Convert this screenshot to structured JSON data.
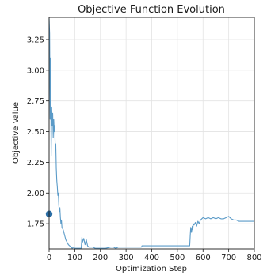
{
  "chart_data": {
    "type": "line",
    "title": "Objective Function Evolution",
    "xlabel": "Optimization Step",
    "ylabel": "Objective Value",
    "xlim": [
      0,
      800
    ],
    "ylim": [
      1.545,
      3.43
    ],
    "x_ticks": [
      0,
      100,
      200,
      300,
      400,
      500,
      600,
      700,
      800
    ],
    "y_ticks": [
      1.75,
      2.0,
      2.25,
      2.5,
      2.75,
      3.0,
      3.25
    ],
    "grid": true,
    "legend": "none",
    "line_color": "#5b9bc8",
    "marker_color": "#2b6ea6",
    "marker_point": [
      0,
      1.83
    ],
    "series": [
      {
        "x": [
          0,
          2,
          4,
          6,
          8,
          10,
          12,
          14,
          16,
          18,
          20,
          22,
          24,
          26,
          28,
          30,
          32,
          34,
          36,
          38,
          40,
          42,
          44,
          46,
          48,
          50,
          55,
          60,
          65,
          70,
          75,
          80,
          85,
          90,
          95,
          100,
          110,
          120,
          125,
          128,
          130,
          135,
          140,
          145,
          150,
          155,
          160,
          170,
          180,
          200,
          220,
          240,
          250,
          260,
          270,
          280,
          300,
          320,
          350,
          360,
          362,
          380,
          400,
          450,
          500,
          548,
          550,
          552,
          555,
          558,
          560,
          562,
          565,
          570,
          575,
          580,
          585,
          590,
          595,
          600,
          610,
          620,
          630,
          640,
          650,
          660,
          670,
          680,
          690,
          700,
          710,
          720,
          730,
          740,
          750,
          760,
          770,
          780,
          790,
          800
        ],
        "y": [
          3.42,
          3.3,
          2.6,
          3.1,
          2.3,
          2.7,
          2.55,
          2.65,
          2.45,
          2.6,
          2.5,
          2.55,
          2.35,
          2.4,
          2.2,
          2.1,
          2.05,
          1.98,
          2.0,
          1.9,
          1.85,
          1.88,
          1.8,
          1.75,
          1.78,
          1.72,
          1.7,
          1.66,
          1.62,
          1.6,
          1.58,
          1.57,
          1.56,
          1.55,
          1.56,
          1.55,
          1.55,
          1.55,
          1.55,
          1.64,
          1.6,
          1.63,
          1.58,
          1.62,
          1.57,
          1.56,
          1.56,
          1.56,
          1.55,
          1.55,
          1.55,
          1.56,
          1.56,
          1.55,
          1.56,
          1.56,
          1.56,
          1.56,
          1.56,
          1.56,
          1.57,
          1.57,
          1.57,
          1.57,
          1.57,
          1.57,
          1.65,
          1.72,
          1.68,
          1.73,
          1.7,
          1.75,
          1.74,
          1.76,
          1.73,
          1.77,
          1.75,
          1.78,
          1.79,
          1.8,
          1.79,
          1.8,
          1.79,
          1.8,
          1.79,
          1.8,
          1.79,
          1.79,
          1.8,
          1.81,
          1.79,
          1.78,
          1.78,
          1.77,
          1.77,
          1.77,
          1.77,
          1.77,
          1.77,
          1.77
        ]
      }
    ]
  }
}
